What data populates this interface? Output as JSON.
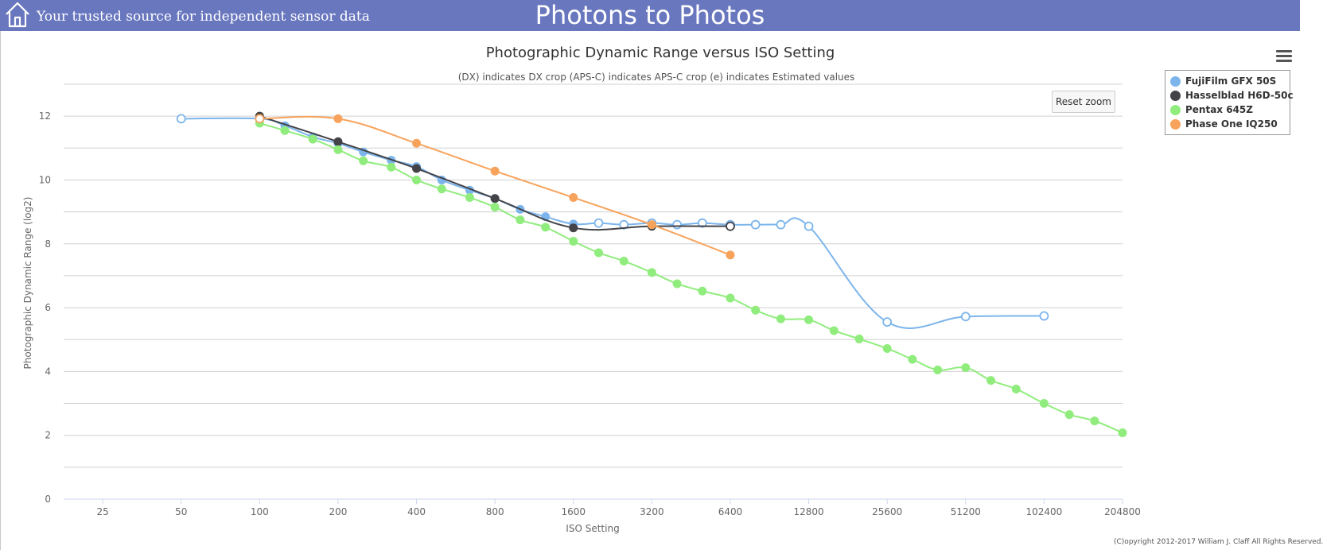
{
  "header": {
    "tagline": "Your trusted source for independent sensor data",
    "site_title": "Photons to Photos",
    "home_icon": "home-icon",
    "banner_color": "#6977bf"
  },
  "toolbar": {
    "reset_zoom_label": "Reset zoom",
    "menu_icon": "hamburger-menu-icon"
  },
  "footer": {
    "copyright": "(C)opyright 2012-2017 William J. Claff All Rights Reserved."
  },
  "chart_data": {
    "type": "line",
    "title": "Photographic Dynamic Range versus ISO Setting",
    "subtitle": "(DX) indicates DX crop (APS-C) indicates APS-C crop (e) indicates Estimated values",
    "xlabel": "ISO Setting",
    "ylabel": "Photographic Dynamic Range (log2)",
    "x_scale": "log2",
    "x_ticks": [
      25,
      50,
      100,
      200,
      400,
      800,
      1600,
      3200,
      6400,
      12800,
      25600,
      51200,
      102400,
      204800
    ],
    "x_tick_labels": [
      "25",
      "50",
      "100",
      "200",
      "400",
      "800",
      "1600",
      "3200",
      "6400",
      "12800",
      "25600",
      "51200",
      "102400",
      "204800"
    ],
    "xlim": [
      17.7,
      204800
    ],
    "ylim": [
      0,
      13
    ],
    "y_ticks": [
      0,
      2,
      4,
      6,
      8,
      10,
      12
    ],
    "y_tick_labels": [
      "0",
      "2",
      "4",
      "6",
      "8",
      "10",
      "12"
    ],
    "grid": true,
    "legend_position": "top-right",
    "series": [
      {
        "name": "FujiFilm GFX 50S",
        "color": "#7cb5ec",
        "points": [
          {
            "x": 50,
            "y": 11.92,
            "hollow": true
          },
          {
            "x": 100,
            "y": 11.92,
            "hollow": true
          },
          {
            "x": 125,
            "y": 11.7,
            "hollow": false
          },
          {
            "x": 160,
            "y": 11.35,
            "hollow": false
          },
          {
            "x": 200,
            "y": 11.15,
            "hollow": false
          },
          {
            "x": 250,
            "y": 10.88,
            "hollow": false
          },
          {
            "x": 320,
            "y": 10.62,
            "hollow": false
          },
          {
            "x": 400,
            "y": 10.42,
            "hollow": false
          },
          {
            "x": 500,
            "y": 10.0,
            "hollow": false
          },
          {
            "x": 640,
            "y": 9.68,
            "hollow": false
          },
          {
            "x": 800,
            "y": 9.42,
            "hollow": false
          },
          {
            "x": 1000,
            "y": 9.08,
            "hollow": false
          },
          {
            "x": 1250,
            "y": 8.85,
            "hollow": false
          },
          {
            "x": 1600,
            "y": 8.62,
            "hollow": false
          },
          {
            "x": 2000,
            "y": 8.65,
            "hollow": true
          },
          {
            "x": 2500,
            "y": 8.6,
            "hollow": true
          },
          {
            "x": 3200,
            "y": 8.65,
            "hollow": true
          },
          {
            "x": 4000,
            "y": 8.6,
            "hollow": true
          },
          {
            "x": 5000,
            "y": 8.65,
            "hollow": true
          },
          {
            "x": 6400,
            "y": 8.6,
            "hollow": true
          },
          {
            "x": 8000,
            "y": 8.6,
            "hollow": true
          },
          {
            "x": 10000,
            "y": 8.6,
            "hollow": true
          },
          {
            "x": 12800,
            "y": 8.55,
            "hollow": true
          },
          {
            "x": 25600,
            "y": 5.55,
            "hollow": true
          },
          {
            "x": 51200,
            "y": 5.72,
            "hollow": true
          },
          {
            "x": 102400,
            "y": 5.74,
            "hollow": true
          }
        ]
      },
      {
        "name": "Hasselblad H6D-50c",
        "color": "#434348",
        "points": [
          {
            "x": 100,
            "y": 12.0,
            "hollow": false
          },
          {
            "x": 200,
            "y": 11.2,
            "hollow": false
          },
          {
            "x": 400,
            "y": 10.36,
            "hollow": false
          },
          {
            "x": 800,
            "y": 9.42,
            "hollow": false
          },
          {
            "x": 1600,
            "y": 8.5,
            "hollow": false
          },
          {
            "x": 3200,
            "y": 8.55,
            "hollow": false
          },
          {
            "x": 6400,
            "y": 8.55,
            "hollow": true
          }
        ]
      },
      {
        "name": "Pentax 645Z",
        "color": "#90ed7d",
        "points": [
          {
            "x": 100,
            "y": 11.78,
            "hollow": false
          },
          {
            "x": 125,
            "y": 11.55,
            "hollow": false
          },
          {
            "x": 160,
            "y": 11.28,
            "hollow": false
          },
          {
            "x": 200,
            "y": 10.95,
            "hollow": false
          },
          {
            "x": 250,
            "y": 10.6,
            "hollow": false
          },
          {
            "x": 320,
            "y": 10.4,
            "hollow": false
          },
          {
            "x": 400,
            "y": 10.0,
            "hollow": false
          },
          {
            "x": 500,
            "y": 9.72,
            "hollow": false
          },
          {
            "x": 640,
            "y": 9.45,
            "hollow": false
          },
          {
            "x": 800,
            "y": 9.15,
            "hollow": false
          },
          {
            "x": 1000,
            "y": 8.75,
            "hollow": false
          },
          {
            "x": 1250,
            "y": 8.52,
            "hollow": false
          },
          {
            "x": 1600,
            "y": 8.08,
            "hollow": false
          },
          {
            "x": 2000,
            "y": 7.72,
            "hollow": false
          },
          {
            "x": 2500,
            "y": 7.46,
            "hollow": false
          },
          {
            "x": 3200,
            "y": 7.1,
            "hollow": false
          },
          {
            "x": 4000,
            "y": 6.75,
            "hollow": false
          },
          {
            "x": 5000,
            "y": 6.52,
            "hollow": false
          },
          {
            "x": 6400,
            "y": 6.3,
            "hollow": false
          },
          {
            "x": 8000,
            "y": 5.92,
            "hollow": false
          },
          {
            "x": 10000,
            "y": 5.65,
            "hollow": false
          },
          {
            "x": 12800,
            "y": 5.62,
            "hollow": false
          },
          {
            "x": 16000,
            "y": 5.28,
            "hollow": false
          },
          {
            "x": 20000,
            "y": 5.02,
            "hollow": false
          },
          {
            "x": 25600,
            "y": 4.72,
            "hollow": false
          },
          {
            "x": 32000,
            "y": 4.38,
            "hollow": false
          },
          {
            "x": 40000,
            "y": 4.05,
            "hollow": false
          },
          {
            "x": 51200,
            "y": 4.12,
            "hollow": false
          },
          {
            "x": 64000,
            "y": 3.72,
            "hollow": false
          },
          {
            "x": 80000,
            "y": 3.45,
            "hollow": false
          },
          {
            "x": 102400,
            "y": 3.0,
            "hollow": false
          },
          {
            "x": 128000,
            "y": 2.65,
            "hollow": false
          },
          {
            "x": 160000,
            "y": 2.45,
            "hollow": false
          },
          {
            "x": 204800,
            "y": 2.08,
            "hollow": false
          }
        ]
      },
      {
        "name": "Phase One IQ250",
        "color": "#f7a35c",
        "points": [
          {
            "x": 100,
            "y": 11.92,
            "hollow": true
          },
          {
            "x": 200,
            "y": 11.92,
            "hollow": false
          },
          {
            "x": 400,
            "y": 11.15,
            "hollow": false
          },
          {
            "x": 800,
            "y": 10.28,
            "hollow": false
          },
          {
            "x": 1600,
            "y": 9.45,
            "hollow": false
          },
          {
            "x": 3200,
            "y": 8.6,
            "hollow": false
          },
          {
            "x": 6400,
            "y": 7.65,
            "hollow": false
          }
        ]
      }
    ]
  }
}
